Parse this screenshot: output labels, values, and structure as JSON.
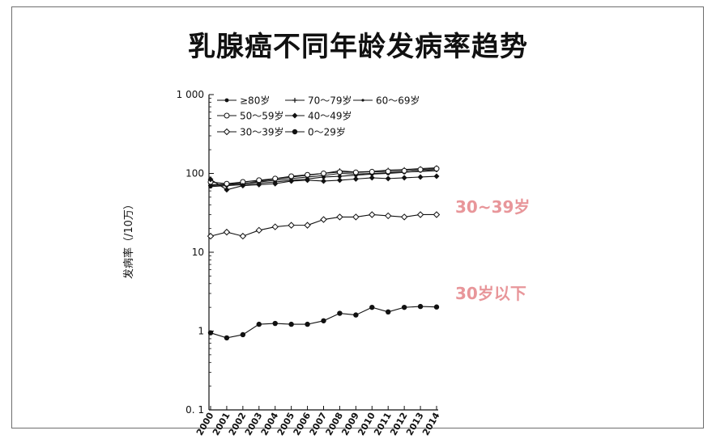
{
  "title": "乳腺癌不同年龄发病率趋势",
  "chart_data": {
    "type": "line",
    "y_scale": "log",
    "ylim": [
      0.1,
      1000
    ],
    "ylabel": "发病率（/10万）",
    "y_ticks": [
      {
        "value": 1000,
        "label": "1 000"
      },
      {
        "value": 100,
        "label": "100"
      },
      {
        "value": 10,
        "label": "10"
      },
      {
        "value": 1,
        "label": "1"
      },
      {
        "value": 0.1,
        "label": "0. 1"
      }
    ],
    "x": [
      "2000",
      "2001",
      "2002",
      "2003",
      "2004",
      "2005",
      "2006",
      "2007",
      "2008",
      "2009",
      "2010",
      "2011",
      "2012",
      "2013",
      "2014"
    ],
    "legend_position": "top-left",
    "series": [
      {
        "name": "≥80岁",
        "marker": "filled-circle-small",
        "values": [
          68,
          70,
          72,
          75,
          78,
          82,
          85,
          90,
          92,
          95,
          98,
          100,
          103,
          108,
          112
        ]
      },
      {
        "name": "70～79岁",
        "marker": "plus",
        "values": [
          70,
          72,
          74,
          80,
          85,
          90,
          95,
          100,
          108,
          104,
          106,
          110,
          112,
          115,
          118
        ]
      },
      {
        "name": "60～69岁",
        "marker": "dot",
        "values": [
          72,
          73,
          75,
          78,
          82,
          86,
          90,
          94,
          100,
          98,
          100,
          102,
          104,
          106,
          108
        ]
      },
      {
        "name": "50～59岁",
        "marker": "open-circle",
        "values": [
          78,
          74,
          78,
          82,
          86,
          92,
          96,
          100,
          104,
          103,
          105,
          106,
          108,
          112,
          115
        ]
      },
      {
        "name": "40～49岁",
        "marker": "filled-diamond",
        "values": [
          84,
          62,
          70,
          72,
          74,
          80,
          82,
          80,
          82,
          85,
          88,
          86,
          88,
          90,
          92
        ]
      },
      {
        "name": "30～39岁",
        "marker": "open-diamond",
        "values": [
          16,
          18,
          16,
          19,
          21,
          22,
          22,
          26,
          28,
          28,
          30,
          29,
          28,
          30,
          30
        ]
      },
      {
        "name": "0～29岁",
        "marker": "filled-circle",
        "values": [
          0.95,
          0.82,
          0.9,
          1.22,
          1.25,
          1.22,
          1.22,
          1.35,
          1.68,
          1.6,
          2.0,
          1.75,
          2.0,
          2.05,
          2.02
        ]
      }
    ],
    "annotations": [
      {
        "text": "30~39岁",
        "color": "#e8969a"
      },
      {
        "text": "30岁以下",
        "color": "#e8969a"
      }
    ]
  }
}
